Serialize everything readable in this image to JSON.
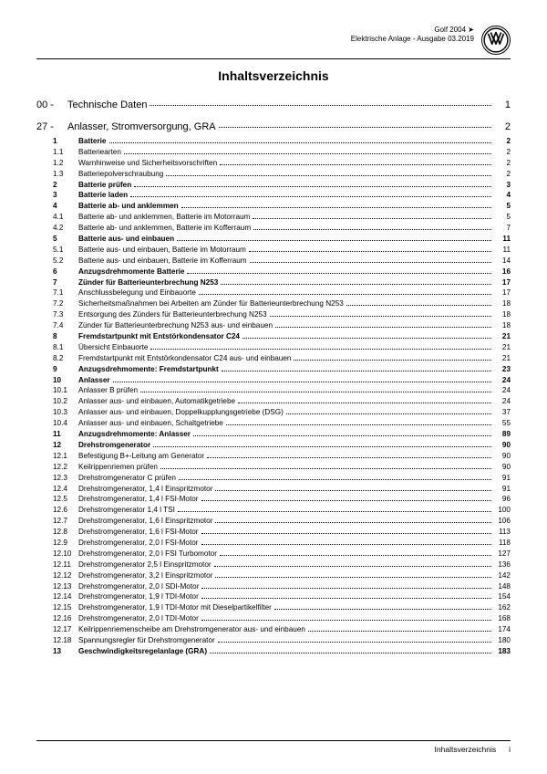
{
  "header": {
    "line1": "Golf 2004 ➤",
    "line2": "Elektrische Anlage - Ausgabe 03.2019"
  },
  "title": "Inhaltsverzeichnis",
  "sections": [
    {
      "num": "00 -",
      "txt": "Technische Daten",
      "pg": "1"
    },
    {
      "num": "27 -",
      "txt": "Anlasser, Stromversorgung, GRA",
      "pg": "2"
    }
  ],
  "toc": [
    {
      "num": "1",
      "txt": "Batterie",
      "pg": "2",
      "bold": true
    },
    {
      "num": "1.1",
      "txt": "Batteriearten",
      "pg": "2"
    },
    {
      "num": "1.2",
      "txt": "Warnhinweise und Sicherheitsvorschriften",
      "pg": "2"
    },
    {
      "num": "1.3",
      "txt": "Batteriepolverschraubung",
      "pg": "2"
    },
    {
      "num": "2",
      "txt": "Batterie prüfen",
      "pg": "3",
      "bold": true
    },
    {
      "num": "3",
      "txt": "Batterie laden",
      "pg": "4",
      "bold": true
    },
    {
      "num": "4",
      "txt": "Batterie ab- und anklemmen",
      "pg": "5",
      "bold": true
    },
    {
      "num": "4.1",
      "txt": "Batterie ab- und anklemmen, Batterie im Motorraum",
      "pg": "5"
    },
    {
      "num": "4.2",
      "txt": "Batterie ab- und anklemmen, Batterie im Kofferraum",
      "pg": "7"
    },
    {
      "num": "5",
      "txt": "Batterie aus- und einbauen",
      "pg": "11",
      "bold": true
    },
    {
      "num": "5.1",
      "txt": "Batterie aus- und einbauen, Batterie im Motorraum",
      "pg": "11"
    },
    {
      "num": "5.2",
      "txt": "Batterie aus- und einbauen, Batterie im Kofferraum",
      "pg": "14"
    },
    {
      "num": "6",
      "txt": "Anzugsdrehmomente Batterie",
      "pg": "16",
      "bold": true
    },
    {
      "num": "7",
      "txt": "Zünder für Batterieunterbrechung N253",
      "pg": "17",
      "bold": true
    },
    {
      "num": "7.1",
      "txt": "Anschlussbelegung und Einbauorte",
      "pg": "17"
    },
    {
      "num": "7.2",
      "txt": "Sicherheitsmaßnahmen bei Arbeiten am Zünder für Batterieunterbrechung N253",
      "pg": "18"
    },
    {
      "num": "7.3",
      "txt": "Entsorgung des Zünders für Batterieunterbrechung N253",
      "pg": "18"
    },
    {
      "num": "7.4",
      "txt": "Zünder für Batterieunterbrechung N253 aus- und einbauen",
      "pg": "18"
    },
    {
      "num": "8",
      "txt": "Fremdstartpunkt mit Entstörkondensator C24",
      "pg": "21",
      "bold": true
    },
    {
      "num": "8.1",
      "txt": "Übersicht Einbauorte",
      "pg": "21"
    },
    {
      "num": "8.2",
      "txt": "Fremdstartpunkt mit Entstörkondensator C24 aus- und einbauen",
      "pg": "21"
    },
    {
      "num": "9",
      "txt": "Anzugsdrehmomente: Fremdstartpunkt",
      "pg": "23",
      "bold": true
    },
    {
      "num": "10",
      "txt": "Anlasser",
      "pg": "24",
      "bold": true
    },
    {
      "num": "10.1",
      "txt": "Anlasser B prüfen",
      "pg": "24"
    },
    {
      "num": "10.2",
      "txt": "Anlasser aus- und einbauen, Automatikgetriebe",
      "pg": "24"
    },
    {
      "num": "10.3",
      "txt": "Anlasser aus- und einbauen, Doppelkupplungsgetriebe (DSG)",
      "pg": "37"
    },
    {
      "num": "10.4",
      "txt": "Anlasser aus- und einbauen, Schaltgetriebe",
      "pg": "55"
    },
    {
      "num": "11",
      "txt": "Anzugsdrehmomente: Anlasser",
      "pg": "89",
      "bold": true
    },
    {
      "num": "12",
      "txt": "Drehstromgenerator",
      "pg": "90",
      "bold": true
    },
    {
      "num": "12.1",
      "txt": "Befestigung B+-Leitung am Generator",
      "pg": "90"
    },
    {
      "num": "12.2",
      "txt": "Keilrippenriemen prüfen",
      "pg": "90"
    },
    {
      "num": "12.3",
      "txt": "Drehstromgenerator C prüfen",
      "pg": "91"
    },
    {
      "num": "12.4",
      "txt": "Drehstromgenerator, 1,4 l Einspritzmotor",
      "pg": "91"
    },
    {
      "num": "12.5",
      "txt": "Drehstromgenerator, 1,4 l FSI-Motor",
      "pg": "96"
    },
    {
      "num": "12.6",
      "txt": "Drehstromgenerator 1,4 l TSI",
      "pg": "100"
    },
    {
      "num": "12.7",
      "txt": "Drehstromgenerator, 1,6 l Einspritzmotor",
      "pg": "106"
    },
    {
      "num": "12.8",
      "txt": "Drehstromgenerator, 1,6 l FSI-Motor",
      "pg": "113"
    },
    {
      "num": "12.9",
      "txt": "Drehstromgenerator, 2,0 l FSI-Motor",
      "pg": "118"
    },
    {
      "num": "12.10",
      "txt": "Drehstromgenerator, 2,0 l FSI Turbomotor",
      "pg": "127"
    },
    {
      "num": "12.11",
      "txt": "Drehstromgenerator 2,5 l Einspritzmotor",
      "pg": "136"
    },
    {
      "num": "12.12",
      "txt": "Drehstromgenerator, 3,2 l Einspritzmotor",
      "pg": "142"
    },
    {
      "num": "12.13",
      "txt": "Drehstromgenerator, 2,0 l SDI-Motor",
      "pg": "148"
    },
    {
      "num": "12.14",
      "txt": "Drehstromgenerator, 1,9 l TDI-Motor",
      "pg": "154"
    },
    {
      "num": "12.15",
      "txt": "Drehstromgenerator, 1,9 l TDI-Motor mit Dieselpartikelfilter",
      "pg": "162"
    },
    {
      "num": "12.16",
      "txt": "Drehstromgenerator, 2,0 l TDI-Motor",
      "pg": "168"
    },
    {
      "num": "12.17",
      "txt": "Keilrippenriemenscheibe am Drehstromgenerator aus- und einbauen",
      "pg": "174"
    },
    {
      "num": "12.18",
      "txt": "Spannungsregler für Drehstromgenerator",
      "pg": "180"
    },
    {
      "num": "13",
      "txt": "Geschwindigkeitsregelanlage (GRA)",
      "pg": "183",
      "bold": true
    }
  ],
  "footer": {
    "label": "Inhaltsverzeichnis",
    "pgnum": "i"
  }
}
